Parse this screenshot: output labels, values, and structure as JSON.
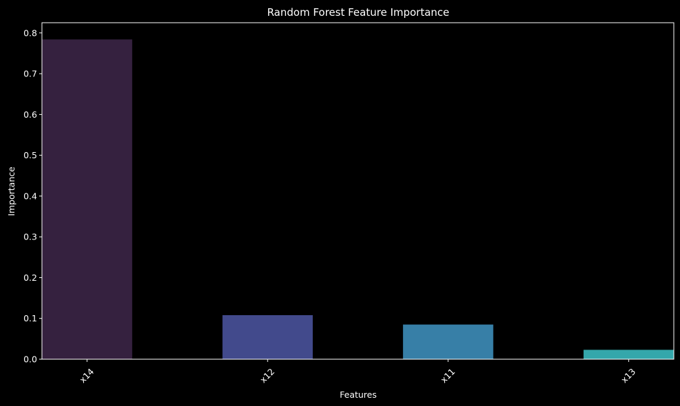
{
  "chart_data": {
    "type": "bar",
    "title": "Random Forest Feature Importance",
    "xlabel": "Features",
    "ylabel": "Importance",
    "categories": [
      "x14",
      "x12",
      "x11",
      "x13"
    ],
    "values": [
      0.784,
      0.108,
      0.085,
      0.023
    ],
    "ylim": [
      0,
      0.825
    ],
    "yticks": [
      0.0,
      0.1,
      0.2,
      0.3,
      0.4,
      0.5,
      0.6,
      0.7,
      0.8
    ],
    "ytick_labels": [
      "0.0",
      "0.1",
      "0.2",
      "0.3",
      "0.4",
      "0.5",
      "0.6",
      "0.7",
      "0.8"
    ],
    "bar_colors": [
      "#35213f",
      "#424a8c",
      "#377fa7",
      "#34a7ab"
    ],
    "background_color": "#000000",
    "grid": false,
    "legend": "none"
  }
}
